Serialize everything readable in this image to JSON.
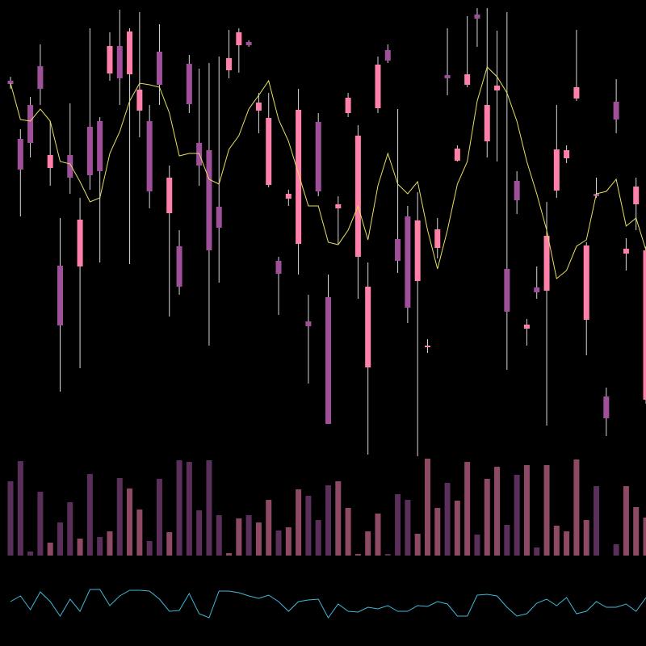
{
  "chart_data": [
    {
      "type": "candlestick",
      "up_color": "#ff80a8",
      "down_color": "#a0509a",
      "ylim": [
        35,
        600
      ],
      "open": [
        500,
        428,
        470,
        518,
        392,
        271,
        408,
        270,
        443,
        450,
        509,
        543,
        508,
        463,
        450,
        536,
        336,
        295,
        521,
        423,
        414,
        344,
        513,
        544,
        548,
        463,
        371,
        277,
        354,
        298,
        202,
        449,
        232,
        342,
        460,
        282,
        145,
        466,
        538,
        304,
        332,
        252,
        170,
        293,
        507,
        401,
        495,
        582,
        425,
        488,
        267,
        376,
        193,
        244,
        240,
        364,
        404,
        478,
        204,
        360,
        109,
        474,
        286,
        347,
        105
      ],
      "high": [
        505,
        440,
        480,
        545,
        450,
        330,
        472,
        355,
        565,
        455,
        560,
        588,
        565,
        585,
        470,
        570,
        395,
        315,
        532,
        515,
        522,
        530,
        563,
        565,
        550,
        485,
        485,
        282,
        365,
        490,
        235,
        460,
        260,
        357,
        485,
        445,
        275,
        530,
        545,
        465,
        345,
        362,
        180,
        330,
        565,
        420,
        580,
        590,
        590,
        562,
        585,
        388,
        205,
        270,
        350,
        470,
        420,
        563,
        300,
        380,
        120,
        502,
        305,
        380,
        295
      ],
      "low": [
        490,
        332,
        405,
        470,
        370,
        115,
        360,
        144,
        365,
        275,
        500,
        470,
        273,
        430,
        342,
        470,
        208,
        235,
        460,
        370,
        172,
        250,
        503,
        510,
        542,
        435,
        368,
        210,
        345,
        260,
        125,
        357,
        75,
        298,
        455,
        230,
        37,
        460,
        522,
        262,
        200,
        35,
        163,
        280,
        482,
        400,
        492,
        542,
        405,
        400,
        142,
        335,
        172,
        230,
        73,
        355,
        398,
        475,
        160,
        355,
        60,
        435,
        265,
        315,
        100
      ],
      "close": [
        496,
        390,
        423,
        490,
        408,
        197,
        380,
        328,
        383,
        388,
        543,
        503,
        561,
        489,
        363,
        495,
        380,
        245,
        471,
        395,
        290,
        318,
        528,
        560,
        544,
        473,
        454,
        261,
        360,
        464,
        196,
        363,
        75,
        347,
        479,
        432,
        245,
        520,
        525,
        277,
        219,
        327,
        172,
        316,
        503,
        416,
        508,
        577,
        470,
        494,
        214,
        352,
        198,
        238,
        308,
        415,
        414,
        492,
        296,
        357,
        82,
        452,
        292,
        369,
        290
      ],
      "series": [
        {
          "type": "line",
          "color": "#e8e060",
          "values": [
            497,
            452,
            450,
            465,
            450,
            400,
            397,
            375,
            350,
            355,
            410,
            437,
            475,
            497,
            495,
            492,
            460,
            407,
            410,
            410,
            378,
            372,
            415,
            432,
            465,
            482,
            500,
            452,
            425,
            385,
            345,
            345,
            300,
            297,
            315,
            345,
            303,
            370,
            410,
            372,
            360,
            375,
            315,
            267,
            315,
            372,
            400,
            475,
            517,
            505,
            485,
            450,
            400,
            360,
            315,
            255,
            265,
            295,
            303,
            360,
            363,
            378,
            320,
            330,
            290
          ]
        }
      ]
    },
    {
      "type": "volume",
      "up_color": "#8e4a64",
      "down_color": "#5a2f5a",
      "ylim": [
        0,
        125
      ],
      "values": [
        92,
        117,
        5,
        79,
        16,
        41,
        66,
        21,
        101,
        23,
        30,
        96,
        83,
        57,
        18,
        95,
        29,
        118,
        116,
        56,
        118,
        50,
        3,
        46,
        50,
        41,
        69,
        31,
        35,
        82,
        74,
        44,
        87,
        92,
        59,
        2,
        30,
        52,
        2,
        76,
        69,
        27,
        120,
        59,
        90,
        68,
        116,
        26,
        95,
        110,
        38,
        100,
        112,
        10,
        112,
        37,
        30,
        119,
        44,
        86,
        0,
        14,
        86,
        60,
        47
      ]
    },
    {
      "type": "line",
      "color": "#40b8d8",
      "ylim": [
        30,
        90
      ],
      "values": [
        55,
        62,
        45,
        67,
        55,
        37,
        58,
        43,
        70,
        70,
        50,
        62,
        69,
        69,
        68,
        58,
        43,
        44,
        65,
        40,
        35,
        68,
        68,
        66,
        62,
        59,
        63,
        55,
        43,
        55,
        57,
        58,
        35,
        52,
        43,
        42,
        48,
        46,
        50,
        43,
        43,
        50,
        49,
        55,
        52,
        37,
        37,
        63,
        64,
        62,
        48,
        37,
        40,
        53,
        58,
        50,
        60,
        40,
        43,
        55,
        48,
        48,
        52,
        43,
        60
      ]
    }
  ]
}
